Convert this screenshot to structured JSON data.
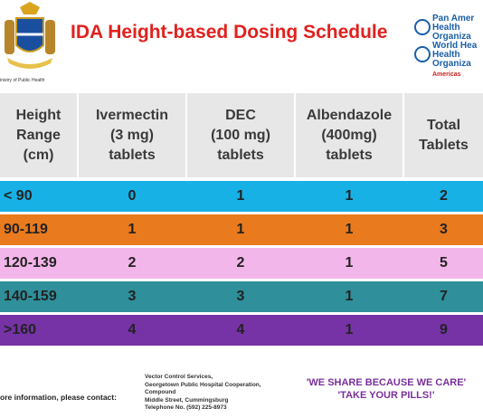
{
  "header": {
    "title": "IDA Height-based Dosing Schedule",
    "ministry": "inistry of Public Health",
    "who_logo": [
      "Pan Amer",
      "Health",
      "Organiza",
      "World Hea",
      "Health",
      "Organiza",
      "Americas"
    ]
  },
  "table": {
    "columns": [
      [
        "Height",
        "Range",
        "(cm)"
      ],
      [
        "Ivermectin",
        "(3 mg)",
        "tablets"
      ],
      [
        "DEC",
        "(100 mg)",
        "tablets"
      ],
      [
        "Albendazole",
        "(400mg)",
        "tablets"
      ],
      [
        "Total",
        "Tablets"
      ]
    ],
    "rows": [
      [
        "< 90",
        "0",
        "1",
        "1",
        "2"
      ],
      [
        "90-119",
        "1",
        "1",
        "1",
        "3"
      ],
      [
        "120-139",
        "2",
        "2",
        "1",
        "5"
      ],
      [
        "140-159",
        "3",
        "3",
        "1",
        "7"
      ],
      [
        ">160",
        "4",
        "4",
        "1",
        "9"
      ]
    ]
  },
  "footer": {
    "contact": "ore information, please contact:",
    "address": [
      "Vector Control Services,",
      "Georgetown Public Hospital Cooperation,",
      "Compound",
      "Middle Street, Cummingsburg",
      "Telephone No. (592) 225-8973"
    ],
    "slogans": [
      "'WE SHARE BECAUSE WE CARE'",
      "'TAKE YOUR PILLS!'"
    ]
  }
}
